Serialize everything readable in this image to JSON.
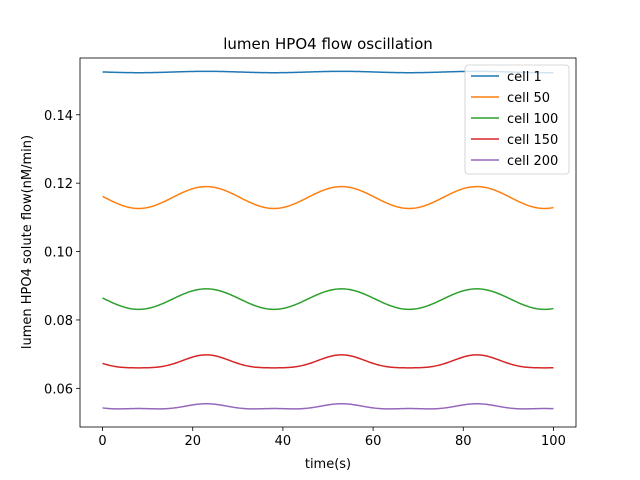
{
  "chart_data": {
    "type": "line",
    "title": "lumen HPO4 flow oscillation",
    "xlabel": "time(s)",
    "ylabel": "lumen HPO4 solute flow(nM/min)",
    "xlim": [
      -5,
      105
    ],
    "ylim": [
      0.0487,
      0.1566
    ],
    "xticks": [
      0,
      20,
      40,
      60,
      80,
      100
    ],
    "yticks": [
      0.06,
      0.08,
      0.1,
      0.12,
      0.14
    ],
    "ytick_labels": [
      "0.06",
      "0.08",
      "0.10",
      "0.12",
      "0.14"
    ],
    "grid": false,
    "legend_position": "top-right",
    "series": [
      {
        "name": "cell 1",
        "color": "#1f77b4",
        "mean": 0.1525,
        "amp": 0.0002,
        "amp2": 0.0,
        "period": 30,
        "phase": 15.5
      },
      {
        "name": "cell 50",
        "color": "#ff7f0e",
        "mean": 0.1158,
        "amp": 0.0032,
        "amp2": 0.0,
        "period": 30,
        "phase": 15.5
      },
      {
        "name": "cell 100",
        "color": "#2ca02c",
        "mean": 0.0861,
        "amp": 0.003,
        "amp2": 0.0,
        "period": 30,
        "phase": 15.5
      },
      {
        "name": "cell 150",
        "color": "#d62728",
        "mean": 0.0675,
        "amp": 0.0019,
        "amp2": -0.0004,
        "period": 30,
        "phase": 15.5
      },
      {
        "name": "cell 200",
        "color": "#9467bd",
        "mean": 0.0545,
        "amp": 0.0007,
        "amp2": -0.0003,
        "period": 30,
        "phase": 15.5
      }
    ]
  }
}
